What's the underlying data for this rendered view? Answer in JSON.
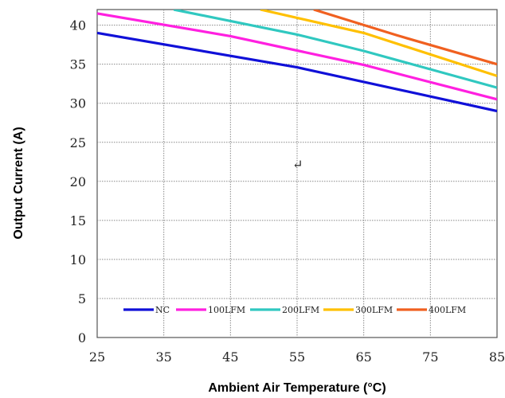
{
  "chart_data": {
    "type": "line",
    "xlabel": "Ambient Air Temperature (°C)",
    "ylabel": "Output Current (A)",
    "xlim": [
      25,
      85
    ],
    "ylim": [
      0,
      42
    ],
    "x_ticks": [
      25,
      35,
      45,
      55,
      65,
      75,
      85
    ],
    "y_ticks": [
      0,
      5,
      10,
      15,
      20,
      25,
      30,
      35,
      40
    ],
    "grid": true,
    "legend_position": "bottom",
    "stray_mark": "↵",
    "series": [
      {
        "name": "NC",
        "color": "#1010d8",
        "x": [
          25,
          55,
          85
        ],
        "y": [
          39,
          34.6,
          29
        ]
      },
      {
        "name": "100LFM",
        "color": "#ff20e0",
        "x": [
          25,
          45,
          65,
          85
        ],
        "y": [
          41.5,
          38.6,
          34.9,
          30.5
        ]
      },
      {
        "name": "200LFM",
        "color": "#30c8c0",
        "x": [
          36.5,
          55,
          65,
          85
        ],
        "y": [
          42,
          38.8,
          36.7,
          32
        ]
      },
      {
        "name": "300LFM",
        "color": "#ffc000",
        "x": [
          49.5,
          65,
          85
        ],
        "y": [
          42,
          39,
          33.5
        ]
      },
      {
        "name": "400LFM",
        "color": "#f06020",
        "x": [
          57.5,
          70,
          85
        ],
        "y": [
          42,
          38.7,
          35
        ]
      }
    ]
  }
}
